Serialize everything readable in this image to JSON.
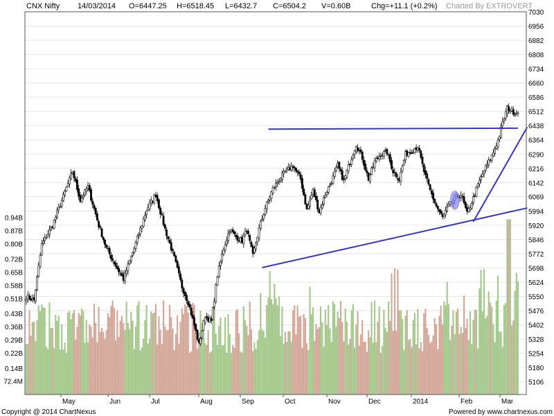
{
  "header": {
    "symbol": "CNX Nifty",
    "date": "14/03/2014",
    "open": "O=6447.25",
    "high": "H=6518.45",
    "low": "L=6432.7",
    "close": "C=6504.2",
    "volume": "V=0.60B",
    "change": "Chg=+11.1 (+0.2%)",
    "charted_by": "Charted By EXTROVERT"
  },
  "footer": {
    "copyright": "Copyright @ 2014 ChartNexus",
    "powered_by": "Powered by www.chartnexus.com"
  },
  "colors": {
    "up_volume": "#a6c98e",
    "down_volume": "#d4a89a",
    "trendline": "#3333cc",
    "highlight": "#8888ee",
    "candle": "#000000",
    "grid": "#e6e6e6"
  },
  "chart_data": {
    "type": "candlestick",
    "title": "CNX Nifty",
    "price_axis": {
      "ticks": [
        "7030",
        "6956",
        "6882",
        "6808",
        "6734",
        "6660",
        "6586",
        "6512",
        "6438",
        "6364",
        "6290",
        "6216",
        "6142",
        "6069",
        "5994",
        "5920",
        "5846",
        "5772",
        "5698",
        "5624",
        "5550",
        "5476",
        "5402",
        "5328",
        "5254",
        "5180",
        "5106"
      ],
      "range": [
        5040,
        7030
      ]
    },
    "volume_axis": {
      "ticks": [
        "0.94B",
        "0.87B",
        "0.80B",
        "0.72B",
        "0.65B",
        "0.58B",
        "0.51B",
        "0.43B",
        "0.36B",
        "0.29B",
        "0.22B",
        "0.14B",
        "72.4M"
      ],
      "range": [
        0,
        0.99
      ]
    },
    "x_labels": [
      "May",
      "Jun",
      "Jul",
      "Aug",
      "Sep",
      "Oct",
      "Nov",
      "Dec",
      "2014",
      "Feb",
      "Mar"
    ],
    "anchors": [
      {
        "d": 0,
        "p": 5550
      },
      {
        "d": 5,
        "p": 5530
      },
      {
        "d": 10,
        "p": 5820
      },
      {
        "d": 17,
        "p": 5920
      },
      {
        "d": 24,
        "p": 6070
      },
      {
        "d": 30,
        "p": 6200
      },
      {
        "d": 35,
        "p": 6050
      },
      {
        "d": 40,
        "p": 6120
      },
      {
        "d": 47,
        "p": 5920
      },
      {
        "d": 52,
        "p": 5800
      },
      {
        "d": 58,
        "p": 5710
      },
      {
        "d": 63,
        "p": 5640
      },
      {
        "d": 70,
        "p": 5800
      },
      {
        "d": 78,
        "p": 6000
      },
      {
        "d": 84,
        "p": 6080
      },
      {
        "d": 90,
        "p": 5900
      },
      {
        "d": 96,
        "p": 5750
      },
      {
        "d": 101,
        "p": 5600
      },
      {
        "d": 105,
        "p": 5520
      },
      {
        "d": 109,
        "p": 5400
      },
      {
        "d": 112,
        "p": 5300
      },
      {
        "d": 116,
        "p": 5450
      },
      {
        "d": 120,
        "p": 5420
      },
      {
        "d": 124,
        "p": 5660
      },
      {
        "d": 128,
        "p": 5800
      },
      {
        "d": 132,
        "p": 5900
      },
      {
        "d": 136,
        "p": 5860
      },
      {
        "d": 140,
        "p": 5840
      },
      {
        "d": 143,
        "p": 5900
      },
      {
        "d": 147,
        "p": 5760
      },
      {
        "d": 151,
        "p": 5900
      },
      {
        "d": 155,
        "p": 6010
      },
      {
        "d": 160,
        "p": 6110
      },
      {
        "d": 166,
        "p": 6180
      },
      {
        "d": 170,
        "p": 6210
      },
      {
        "d": 173,
        "p": 6230
      },
      {
        "d": 178,
        "p": 6160
      },
      {
        "d": 182,
        "p": 6000
      },
      {
        "d": 186,
        "p": 6100
      },
      {
        "d": 190,
        "p": 5990
      },
      {
        "d": 194,
        "p": 6080
      },
      {
        "d": 198,
        "p": 6150
      },
      {
        "d": 202,
        "p": 6230
      },
      {
        "d": 206,
        "p": 6150
      },
      {
        "d": 210,
        "p": 6250
      },
      {
        "d": 214,
        "p": 6340
      },
      {
        "d": 218,
        "p": 6270
      },
      {
        "d": 222,
        "p": 6160
      },
      {
        "d": 226,
        "p": 6250
      },
      {
        "d": 230,
        "p": 6290
      },
      {
        "d": 234,
        "p": 6300
      },
      {
        "d": 238,
        "p": 6200
      },
      {
        "d": 242,
        "p": 6160
      },
      {
        "d": 246,
        "p": 6290
      },
      {
        "d": 250,
        "p": 6310
      },
      {
        "d": 254,
        "p": 6330
      },
      {
        "d": 258,
        "p": 6200
      },
      {
        "d": 262,
        "p": 6100
      },
      {
        "d": 266,
        "p": 6020
      },
      {
        "d": 270,
        "p": 5960
      },
      {
        "d": 274,
        "p": 6020
      },
      {
        "d": 278,
        "p": 6060
      },
      {
        "d": 282,
        "p": 6080
      },
      {
        "d": 286,
        "p": 5980
      },
      {
        "d": 290,
        "p": 6060
      },
      {
        "d": 294,
        "p": 6150
      },
      {
        "d": 298,
        "p": 6220
      },
      {
        "d": 302,
        "p": 6280
      },
      {
        "d": 306,
        "p": 6360
      },
      {
        "d": 309,
        "p": 6450
      },
      {
        "d": 312,
        "p": 6530
      },
      {
        "d": 316,
        "p": 6510
      },
      {
        "d": 319,
        "p": 6504
      }
    ],
    "last_day": 319,
    "series": [
      {
        "name": "Price",
        "type": "candlestick"
      },
      {
        "name": "Volume",
        "type": "bar"
      }
    ],
    "trendlines": [
      {
        "from": {
          "d": 157,
          "p": 6420
        },
        "to": {
          "d": 319,
          "p": 6425
        }
      },
      {
        "from": {
          "d": 153,
          "p": 5700
        },
        "to": {
          "d": 325,
          "p": 6010
        }
      },
      {
        "from": {
          "d": 290,
          "p": 5938
        },
        "to": {
          "d": 325,
          "p": 6430
        }
      }
    ],
    "highlight_ellipse": {
      "d": 278,
      "p": 6050
    },
    "grid": true,
    "price_axis_position": "right",
    "volume_axis_position": "left"
  }
}
